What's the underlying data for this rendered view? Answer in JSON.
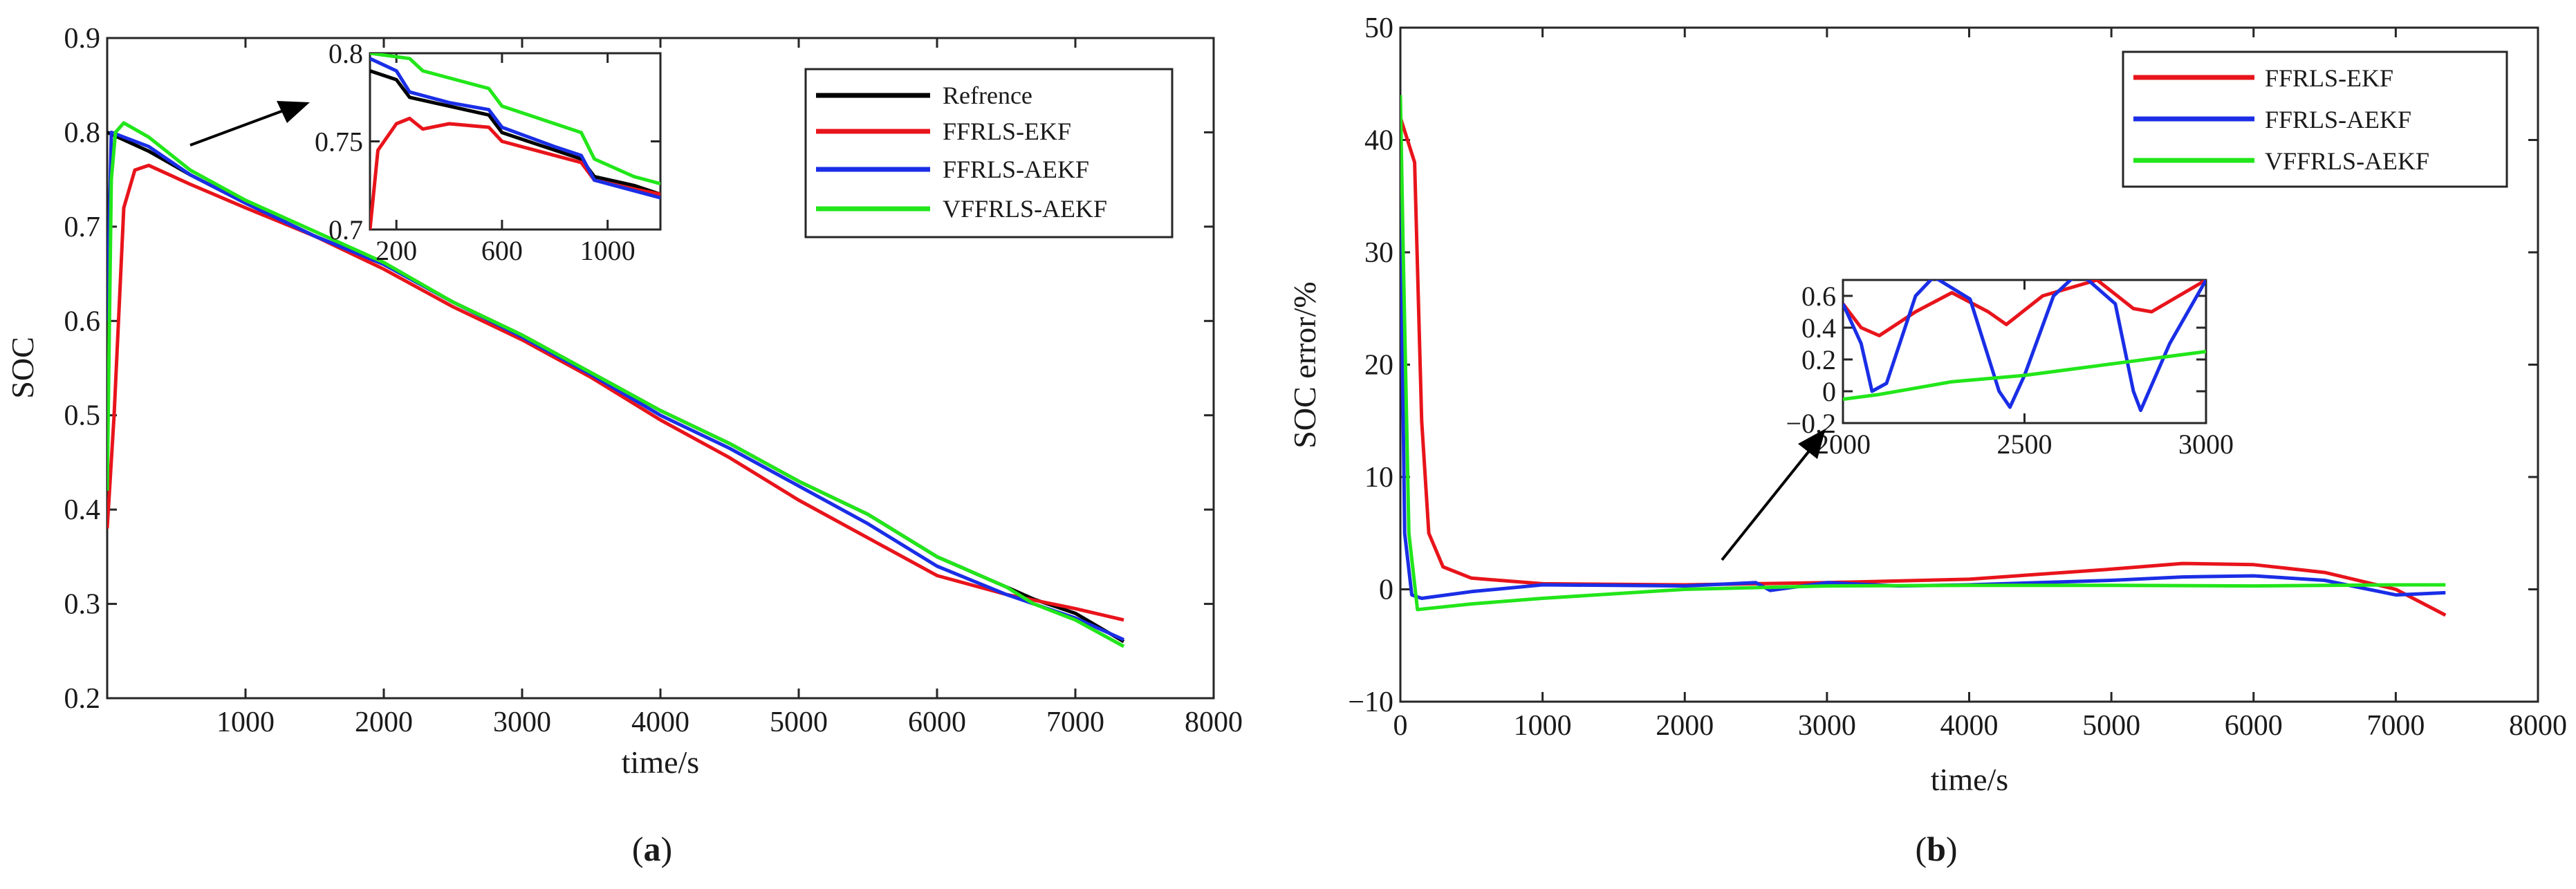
{
  "colors": {
    "reference": "#000000",
    "ffrls_ekf": "#e8141b",
    "ffrls_aekf": "#1a2ee6",
    "vffrls_aekf": "#22e61a",
    "arrow": "#000000"
  },
  "panels": [
    {
      "label_text": "(a)",
      "label_paren_open": "(",
      "label_letter": "a",
      "label_paren_close": ")"
    },
    {
      "label_text": "(b)",
      "label_paren_open": "(",
      "label_letter": "b",
      "label_paren_close": ")"
    }
  ],
  "chart_data": [
    {
      "type": "line",
      "panel": "(a)",
      "xlabel": "time/s",
      "ylabel": "SOC",
      "xlim": [
        0,
        8000
      ],
      "ylim": [
        0.2,
        0.9
      ],
      "xticks": [
        1000,
        2000,
        3000,
        4000,
        5000,
        6000,
        7000,
        8000
      ],
      "yticks": [
        0.2,
        0.3,
        0.4,
        0.5,
        0.6,
        0.7,
        0.8,
        0.9
      ],
      "xtick_labels": [
        "1000",
        "2000",
        "3000",
        "4000",
        "5000",
        "6000",
        "7000",
        "8000"
      ],
      "ytick_labels": [
        "0.2",
        "0.3",
        "0.4",
        "0.5",
        "0.6",
        "0.7",
        "0.8",
        "0.9"
      ],
      "legend_position": "top-right",
      "series": [
        {
          "name": "Refrence",
          "color_key": "reference",
          "points": [
            [
              0,
              0.8
            ],
            [
              300,
              0.78
            ],
            [
              600,
              0.755
            ],
            [
              1000,
              0.725
            ],
            [
              1500,
              0.69
            ],
            [
              2000,
              0.66
            ],
            [
              2500,
              0.62
            ],
            [
              3000,
              0.585
            ],
            [
              3500,
              0.545
            ],
            [
              4000,
              0.505
            ],
            [
              4500,
              0.47
            ],
            [
              5000,
              0.43
            ],
            [
              5500,
              0.395
            ],
            [
              6000,
              0.35
            ],
            [
              6500,
              0.318
            ],
            [
              6700,
              0.305
            ],
            [
              7000,
              0.29
            ],
            [
              7350,
              0.26
            ]
          ]
        },
        {
          "name": "FFRLS-EKF",
          "color_key": "ffrls_ekf",
          "points": [
            [
              0,
              0.38
            ],
            [
              50,
              0.5
            ],
            [
              120,
              0.72
            ],
            [
              200,
              0.76
            ],
            [
              300,
              0.765
            ],
            [
              600,
              0.745
            ],
            [
              1000,
              0.72
            ],
            [
              1500,
              0.69
            ],
            [
              2000,
              0.655
            ],
            [
              2500,
              0.615
            ],
            [
              3000,
              0.58
            ],
            [
              3500,
              0.54
            ],
            [
              4000,
              0.495
            ],
            [
              4500,
              0.455
            ],
            [
              5000,
              0.41
            ],
            [
              5500,
              0.37
            ],
            [
              6000,
              0.33
            ],
            [
              6500,
              0.31
            ],
            [
              7000,
              0.295
            ],
            [
              7350,
              0.283
            ]
          ]
        },
        {
          "name": "FFRLS-AEKF",
          "color_key": "ffrls_aekf",
          "points": [
            [
              0,
              0.6
            ],
            [
              30,
              0.8
            ],
            [
              300,
              0.785
            ],
            [
              600,
              0.755
            ],
            [
              1000,
              0.725
            ],
            [
              1500,
              0.69
            ],
            [
              2000,
              0.66
            ],
            [
              2500,
              0.62
            ],
            [
              3000,
              0.583
            ],
            [
              3500,
              0.543
            ],
            [
              4000,
              0.5
            ],
            [
              4500,
              0.465
            ],
            [
              5000,
              0.425
            ],
            [
              5500,
              0.385
            ],
            [
              6000,
              0.34
            ],
            [
              6500,
              0.31
            ],
            [
              6700,
              0.3
            ],
            [
              7000,
              0.285
            ],
            [
              7350,
              0.262
            ]
          ]
        },
        {
          "name": "VFFRLS-AEKF",
          "color_key": "vffrls_aekf",
          "points": [
            [
              0,
              0.42
            ],
            [
              30,
              0.75
            ],
            [
              60,
              0.8
            ],
            [
              120,
              0.81
            ],
            [
              300,
              0.795
            ],
            [
              600,
              0.76
            ],
            [
              1000,
              0.728
            ],
            [
              1500,
              0.695
            ],
            [
              2000,
              0.662
            ],
            [
              2500,
              0.62
            ],
            [
              3000,
              0.585
            ],
            [
              3500,
              0.545
            ],
            [
              4000,
              0.505
            ],
            [
              4500,
              0.47
            ],
            [
              5000,
              0.43
            ],
            [
              5500,
              0.395
            ],
            [
              6000,
              0.35
            ],
            [
              6500,
              0.318
            ],
            [
              6700,
              0.3
            ],
            [
              7000,
              0.283
            ],
            [
              7350,
              0.255
            ]
          ]
        }
      ],
      "inset": {
        "xlim": [
          100,
          1200
        ],
        "ylim": [
          0.7,
          0.8
        ],
        "xticks": [
          200,
          600,
          1000
        ],
        "yticks": [
          0.7,
          0.75,
          0.8
        ],
        "xtick_labels": [
          "200",
          "600",
          "1000"
        ],
        "ytick_labels": [
          "0.7",
          "0.75",
          "0.8"
        ],
        "series": [
          {
            "color_key": "reference",
            "points": [
              [
                100,
                0.79
              ],
              [
                200,
                0.785
              ],
              [
                250,
                0.775
              ],
              [
                400,
                0.77
              ],
              [
                550,
                0.765
              ],
              [
                600,
                0.755
              ],
              [
                800,
                0.745
              ],
              [
                900,
                0.74
              ],
              [
                950,
                0.73
              ],
              [
                1100,
                0.725
              ],
              [
                1200,
                0.72
              ]
            ]
          },
          {
            "color_key": "ffrls_ekf",
            "points": [
              [
                100,
                0.7
              ],
              [
                130,
                0.745
              ],
              [
                200,
                0.76
              ],
              [
                250,
                0.763
              ],
              [
                300,
                0.757
              ],
              [
                400,
                0.76
              ],
              [
                550,
                0.758
              ],
              [
                600,
                0.75
              ],
              [
                800,
                0.742
              ],
              [
                900,
                0.738
              ],
              [
                950,
                0.728
              ],
              [
                1100,
                0.723
              ],
              [
                1200,
                0.72
              ]
            ]
          },
          {
            "color_key": "ffrls_aekf",
            "points": [
              [
                100,
                0.797
              ],
              [
                200,
                0.79
              ],
              [
                250,
                0.778
              ],
              [
                400,
                0.772
              ],
              [
                550,
                0.768
              ],
              [
                600,
                0.758
              ],
              [
                800,
                0.747
              ],
              [
                900,
                0.742
              ],
              [
                950,
                0.728
              ],
              [
                1100,
                0.722
              ],
              [
                1200,
                0.718
              ]
            ]
          },
          {
            "color_key": "vffrls_aekf",
            "points": [
              [
                100,
                0.8
              ],
              [
                250,
                0.797
              ],
              [
                300,
                0.79
              ],
              [
                550,
                0.78
              ],
              [
                600,
                0.77
              ],
              [
                800,
                0.76
              ],
              [
                900,
                0.755
              ],
              [
                950,
                0.74
              ],
              [
                1100,
                0.73
              ],
              [
                1200,
                0.726
              ]
            ]
          }
        ]
      }
    },
    {
      "type": "line",
      "panel": "(b)",
      "xlabel": "time/s",
      "ylabel": "SOC error/%",
      "xlim": [
        0,
        8000
      ],
      "ylim": [
        -10,
        50
      ],
      "xticks": [
        0,
        1000,
        2000,
        3000,
        4000,
        5000,
        6000,
        7000,
        8000
      ],
      "yticks": [
        -10,
        0,
        10,
        20,
        30,
        40,
        50
      ],
      "xtick_labels": [
        "0",
        "1000",
        "2000",
        "3000",
        "4000",
        "5000",
        "6000",
        "7000",
        "8000"
      ],
      "ytick_labels": [
        "−10",
        "0",
        "10",
        "20",
        "30",
        "40",
        "50"
      ],
      "legend_position": "top-right",
      "series": [
        {
          "name": "FFRLS-EKF",
          "color_key": "ffrls_ekf",
          "points": [
            [
              0,
              42
            ],
            [
              100,
              38
            ],
            [
              150,
              15
            ],
            [
              200,
              5
            ],
            [
              300,
              2
            ],
            [
              500,
              1
            ],
            [
              1000,
              0.5
            ],
            [
              2000,
              0.4
            ],
            [
              3000,
              0.6
            ],
            [
              4000,
              0.9
            ],
            [
              5000,
              1.8
            ],
            [
              5500,
              2.3
            ],
            [
              6000,
              2.2
            ],
            [
              6500,
              1.5
            ],
            [
              7000,
              0
            ],
            [
              7350,
              -2.3
            ]
          ]
        },
        {
          "name": "FFRLS-AEKF",
          "color_key": "ffrls_aekf",
          "points": [
            [
              0,
              35
            ],
            [
              30,
              5
            ],
            [
              80,
              -0.5
            ],
            [
              150,
              -0.8
            ],
            [
              500,
              -0.2
            ],
            [
              1000,
              0.4
            ],
            [
              2000,
              0.3
            ],
            [
              2500,
              0.6
            ],
            [
              2600,
              -0.1
            ],
            [
              3000,
              0.6
            ],
            [
              3500,
              0.3
            ],
            [
              4000,
              0.4
            ],
            [
              5000,
              0.8
            ],
            [
              5500,
              1.1
            ],
            [
              6000,
              1.2
            ],
            [
              6500,
              0.8
            ],
            [
              7000,
              -0.5
            ],
            [
              7350,
              -0.3
            ]
          ]
        },
        {
          "name": "VFFRLS-AEKF",
          "color_key": "vffrls_aekf",
          "points": [
            [
              0,
              44
            ],
            [
              20,
              30
            ],
            [
              60,
              5
            ],
            [
              120,
              -1.8
            ],
            [
              500,
              -1.3
            ],
            [
              1000,
              -0.8
            ],
            [
              2000,
              0.0
            ],
            [
              3000,
              0.3
            ],
            [
              4000,
              0.35
            ],
            [
              5000,
              0.35
            ],
            [
              6000,
              0.3
            ],
            [
              7000,
              0.4
            ],
            [
              7350,
              0.4
            ]
          ]
        }
      ],
      "inset": {
        "xlim": [
          2000,
          3000
        ],
        "ylim": [
          -0.2,
          0.7
        ],
        "xticks": [
          2000,
          2500,
          3000
        ],
        "yticks": [
          -0.2,
          0,
          0.2,
          0.4,
          0.6
        ],
        "xtick_labels": [
          "2000",
          "2500",
          "3000"
        ],
        "ytick_labels": [
          "−0.2",
          "0",
          "0.2",
          "0.4",
          "0.6"
        ],
        "series": [
          {
            "color_key": "ffrls_ekf",
            "points": [
              [
                2000,
                0.55
              ],
              [
                2050,
                0.4
              ],
              [
                2100,
                0.35
              ],
              [
                2200,
                0.5
              ],
              [
                2300,
                0.62
              ],
              [
                2400,
                0.5
              ],
              [
                2450,
                0.42
              ],
              [
                2550,
                0.6
              ],
              [
                2700,
                0.7
              ],
              [
                2800,
                0.52
              ],
              [
                2850,
                0.5
              ],
              [
                3000,
                0.7
              ]
            ]
          },
          {
            "color_key": "ffrls_aekf",
            "points": [
              [
                2000,
                0.55
              ],
              [
                2050,
                0.3
              ],
              [
                2080,
                0.0
              ],
              [
                2120,
                0.05
              ],
              [
                2200,
                0.6
              ],
              [
                2250,
                0.72
              ],
              [
                2350,
                0.58
              ],
              [
                2430,
                0.0
              ],
              [
                2460,
                -0.1
              ],
              [
                2500,
                0.1
              ],
              [
                2580,
                0.6
              ],
              [
                2650,
                0.75
              ],
              [
                2750,
                0.55
              ],
              [
                2800,
                0.0
              ],
              [
                2820,
                -0.12
              ],
              [
                2900,
                0.3
              ],
              [
                3000,
                0.7
              ]
            ]
          },
          {
            "color_key": "vffrls_aekf",
            "points": [
              [
                2000,
                -0.05
              ],
              [
                2100,
                -0.02
              ],
              [
                2200,
                0.02
              ],
              [
                2300,
                0.06
              ],
              [
                2400,
                0.08
              ],
              [
                2500,
                0.1
              ],
              [
                2600,
                0.13
              ],
              [
                2700,
                0.16
              ],
              [
                2800,
                0.19
              ],
              [
                2900,
                0.22
              ],
              [
                3000,
                0.25
              ]
            ]
          }
        ]
      }
    }
  ]
}
